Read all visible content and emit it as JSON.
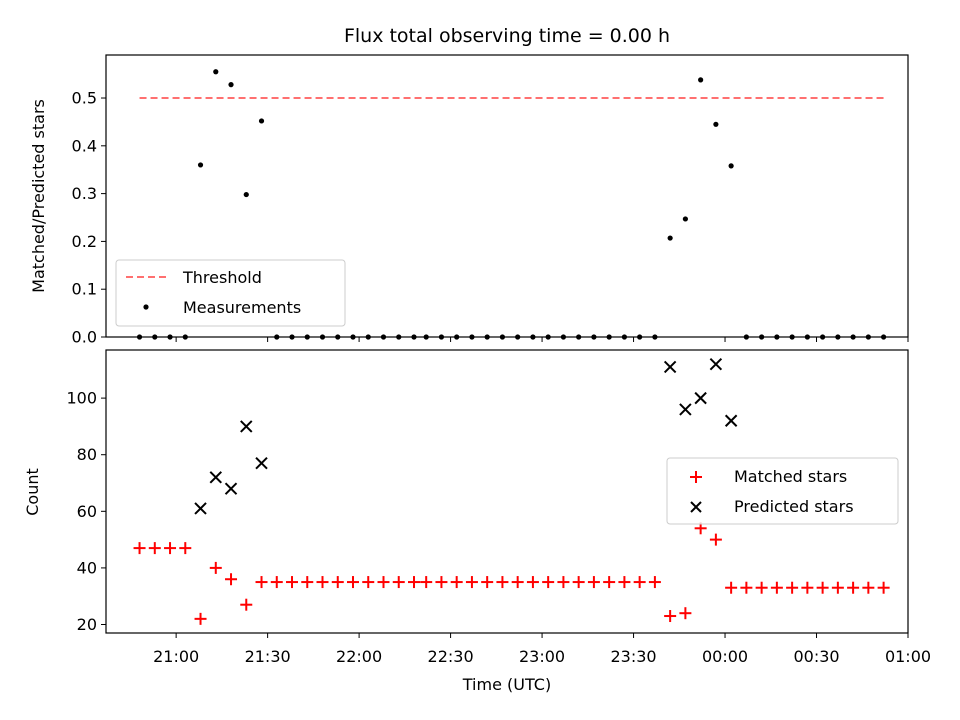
{
  "chart_data": [
    {
      "type": "scatter",
      "title": "Flux total observing time = 0.00 h",
      "ylabel": "Matched/Predicted stars",
      "xlabel": "",
      "xlim": [
        "20:37",
        "01:00"
      ],
      "ylim": [
        0,
        0.59
      ],
      "yticks": [
        "0.0",
        "0.1",
        "0.2",
        "0.3",
        "0.4",
        "0.5"
      ],
      "legend_position": "lower-left",
      "threshold": {
        "name": "Threshold",
        "value": 0.5,
        "x_start": "20:48",
        "x_end": "00:53",
        "color": "#ff7070"
      },
      "series": [
        {
          "name": "Measurements",
          "color": "#000000",
          "x": [
            "20:48",
            "20:53",
            "20:58",
            "21:03",
            "21:08",
            "21:13",
            "21:18",
            "21:23",
            "21:28",
            "21:33",
            "21:38",
            "21:43",
            "21:48",
            "21:53",
            "21:58",
            "22:03",
            "22:08",
            "22:13",
            "22:18",
            "22:22",
            "22:27",
            "22:32",
            "22:37",
            "22:42",
            "22:47",
            "22:52",
            "22:57",
            "23:02",
            "23:07",
            "23:12",
            "23:17",
            "23:22",
            "23:27",
            "23:32",
            "23:37",
            "23:42",
            "23:47",
            "23:52",
            "23:57",
            "00:02",
            "00:07",
            "00:12",
            "00:17",
            "00:22",
            "00:27",
            "00:32",
            "00:37",
            "00:42",
            "00:47",
            "00:52"
          ],
          "y": [
            0,
            0,
            0,
            0,
            0.36,
            0.555,
            0.528,
            0.298,
            0.452,
            0,
            0,
            0,
            0,
            0,
            0,
            0,
            0,
            0,
            0,
            0,
            0,
            0,
            0,
            0,
            0,
            0,
            0,
            0,
            0,
            0,
            0,
            0,
            0,
            0,
            0,
            0.207,
            0.247,
            0.538,
            0.445,
            0.358,
            0,
            0,
            0,
            0,
            0,
            0,
            0,
            0,
            0,
            0
          ]
        }
      ]
    },
    {
      "type": "scatter",
      "title": "",
      "xlabel": "Time (UTC)",
      "ylabel": "Count",
      "xlim": [
        "20:37",
        "01:00"
      ],
      "ylim": [
        17,
        117
      ],
      "yticks": [
        "20",
        "40",
        "60",
        "80",
        "100"
      ],
      "xticks": [
        "21:00",
        "21:30",
        "22:00",
        "22:30",
        "23:00",
        "23:30",
        "00:00",
        "00:30",
        "01:00"
      ],
      "legend_position": "center-right",
      "series": [
        {
          "name": "Matched stars",
          "marker": "plus",
          "color": "#ff0000",
          "x": [
            "20:48",
            "20:53",
            "20:58",
            "21:03",
            "21:08",
            "21:13",
            "21:18",
            "21:23",
            "21:28",
            "21:33",
            "21:38",
            "21:43",
            "21:48",
            "21:53",
            "21:58",
            "22:03",
            "22:08",
            "22:13",
            "22:18",
            "22:22",
            "22:27",
            "22:32",
            "22:37",
            "22:42",
            "22:47",
            "22:52",
            "22:57",
            "23:02",
            "23:07",
            "23:12",
            "23:17",
            "23:22",
            "23:27",
            "23:32",
            "23:37",
            "23:42",
            "23:47",
            "23:52",
            "23:57",
            "00:02",
            "00:07",
            "00:12",
            "00:17",
            "00:22",
            "00:27",
            "00:32",
            "00:37",
            "00:42",
            "00:47",
            "00:52"
          ],
          "y": [
            47,
            47,
            47,
            47,
            22,
            40,
            36,
            27,
            35,
            35,
            35,
            35,
            35,
            35,
            35,
            35,
            35,
            35,
            35,
            35,
            35,
            35,
            35,
            35,
            35,
            35,
            35,
            35,
            35,
            35,
            35,
            35,
            35,
            35,
            35,
            23,
            24,
            54,
            50,
            33,
            33,
            33,
            33,
            33,
            33,
            33,
            33,
            33,
            33,
            33
          ]
        },
        {
          "name": "Predicted stars",
          "marker": "x",
          "color": "#000000",
          "x": [
            "21:08",
            "21:13",
            "21:18",
            "21:23",
            "21:28",
            "23:42",
            "23:47",
            "23:52",
            "23:57",
            "00:02"
          ],
          "y": [
            61,
            72,
            68,
            90,
            77,
            111,
            96,
            100,
            112,
            92
          ]
        }
      ]
    }
  ]
}
